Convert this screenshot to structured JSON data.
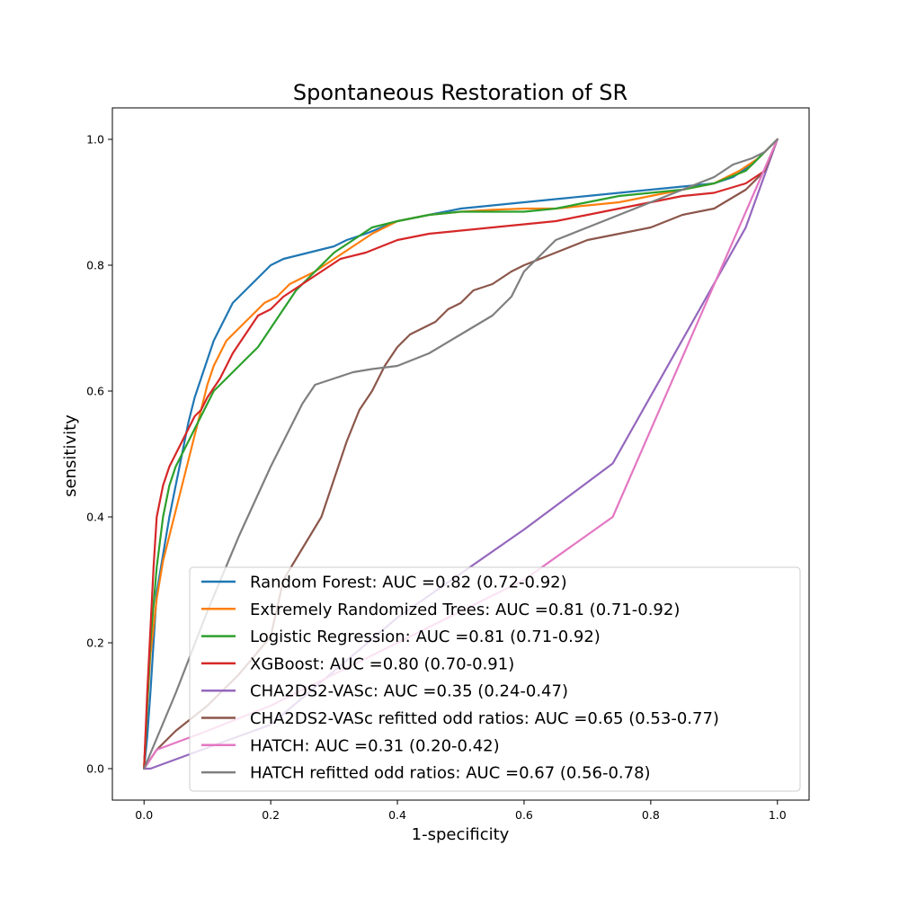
{
  "chart_data": {
    "type": "line",
    "title": "Spontaneous Restoration of SR",
    "xlabel": "1-specificity",
    "ylabel": "sensitivity",
    "xlim": [
      -0.05,
      1.05
    ],
    "ylim": [
      -0.05,
      1.05
    ],
    "xticks": [
      "0.0",
      "0.2",
      "0.4",
      "0.6",
      "0.8",
      "1.0"
    ],
    "yticks": [
      "0.0",
      "0.2",
      "0.4",
      "0.6",
      "0.8",
      "1.0"
    ],
    "grid": false,
    "legend_position": "lower-right",
    "series": [
      {
        "name": "Random Forest: AUC =0.82 (0.72-0.92)",
        "color": "#1f77b4",
        "x": [
          0,
          0.005,
          0.01,
          0.015,
          0.02,
          0.03,
          0.04,
          0.05,
          0.06,
          0.07,
          0.08,
          0.09,
          0.1,
          0.11,
          0.12,
          0.13,
          0.14,
          0.15,
          0.16,
          0.17,
          0.18,
          0.19,
          0.2,
          0.22,
          0.24,
          0.26,
          0.28,
          0.3,
          0.32,
          0.35,
          0.4,
          0.45,
          0.5,
          0.55,
          0.6,
          0.65,
          0.7,
          0.75,
          0.8,
          0.85,
          0.9,
          0.93,
          0.96,
          0.98,
          1.0
        ],
        "y": [
          0,
          0.05,
          0.12,
          0.2,
          0.28,
          0.34,
          0.4,
          0.45,
          0.5,
          0.55,
          0.59,
          0.62,
          0.65,
          0.68,
          0.7,
          0.72,
          0.74,
          0.75,
          0.76,
          0.77,
          0.78,
          0.79,
          0.8,
          0.81,
          0.815,
          0.82,
          0.825,
          0.83,
          0.84,
          0.85,
          0.87,
          0.88,
          0.89,
          0.895,
          0.9,
          0.905,
          0.91,
          0.915,
          0.92,
          0.925,
          0.93,
          0.94,
          0.96,
          0.98,
          1.0
        ]
      },
      {
        "name": "Extremely Randomized Trees: AUC =0.81 (0.71-0.92)",
        "color": "#ff7f0e",
        "x": [
          0,
          0.005,
          0.01,
          0.02,
          0.03,
          0.04,
          0.05,
          0.06,
          0.07,
          0.08,
          0.09,
          0.1,
          0.11,
          0.12,
          0.13,
          0.15,
          0.17,
          0.19,
          0.21,
          0.23,
          0.25,
          0.27,
          0.3,
          0.33,
          0.36,
          0.4,
          0.45,
          0.5,
          0.55,
          0.6,
          0.65,
          0.7,
          0.75,
          0.8,
          0.85,
          0.9,
          0.94,
          0.97,
          1.0
        ],
        "y": [
          0,
          0.1,
          0.18,
          0.27,
          0.33,
          0.37,
          0.41,
          0.45,
          0.49,
          0.53,
          0.57,
          0.61,
          0.64,
          0.66,
          0.68,
          0.7,
          0.72,
          0.74,
          0.75,
          0.77,
          0.78,
          0.79,
          0.81,
          0.83,
          0.85,
          0.87,
          0.88,
          0.885,
          0.888,
          0.89,
          0.89,
          0.895,
          0.9,
          0.91,
          0.92,
          0.93,
          0.95,
          0.97,
          1.0
        ]
      },
      {
        "name": "Logistic Regression: AUC =0.81 (0.71-0.92)",
        "color": "#2ca02c",
        "x": [
          0,
          0.005,
          0.01,
          0.02,
          0.03,
          0.04,
          0.05,
          0.06,
          0.07,
          0.08,
          0.09,
          0.1,
          0.11,
          0.12,
          0.13,
          0.14,
          0.16,
          0.18,
          0.2,
          0.22,
          0.24,
          0.26,
          0.28,
          0.3,
          0.33,
          0.36,
          0.4,
          0.45,
          0.5,
          0.55,
          0.6,
          0.65,
          0.7,
          0.75,
          0.8,
          0.85,
          0.9,
          0.95,
          0.98,
          1.0
        ],
        "y": [
          0,
          0.1,
          0.2,
          0.32,
          0.4,
          0.45,
          0.48,
          0.5,
          0.52,
          0.54,
          0.56,
          0.58,
          0.6,
          0.61,
          0.62,
          0.63,
          0.65,
          0.67,
          0.7,
          0.73,
          0.76,
          0.78,
          0.8,
          0.82,
          0.84,
          0.86,
          0.87,
          0.88,
          0.885,
          0.885,
          0.885,
          0.89,
          0.9,
          0.91,
          0.915,
          0.92,
          0.93,
          0.95,
          0.98,
          1.0
        ]
      },
      {
        "name": "XGBoost: AUC =0.80 (0.70-0.91)",
        "color": "#d62728",
        "x": [
          0,
          0.005,
          0.01,
          0.015,
          0.02,
          0.03,
          0.04,
          0.05,
          0.06,
          0.07,
          0.08,
          0.09,
          0.1,
          0.12,
          0.14,
          0.16,
          0.18,
          0.2,
          0.22,
          0.25,
          0.28,
          0.31,
          0.35,
          0.4,
          0.45,
          0.5,
          0.55,
          0.6,
          0.65,
          0.7,
          0.75,
          0.8,
          0.85,
          0.9,
          0.95,
          0.98,
          1.0
        ],
        "y": [
          0,
          0.12,
          0.22,
          0.32,
          0.4,
          0.45,
          0.48,
          0.5,
          0.52,
          0.54,
          0.56,
          0.57,
          0.59,
          0.62,
          0.66,
          0.69,
          0.72,
          0.73,
          0.75,
          0.77,
          0.79,
          0.81,
          0.82,
          0.84,
          0.85,
          0.855,
          0.86,
          0.865,
          0.87,
          0.88,
          0.89,
          0.9,
          0.91,
          0.915,
          0.93,
          0.95,
          1.0
        ]
      },
      {
        "name": "CHA2DS2-VASc: AUC =0.35 (0.24-0.47)",
        "color": "#9467bd",
        "x": [
          0,
          0.01,
          0.2,
          0.4,
          0.6,
          0.74,
          0.95,
          1.0
        ],
        "y": [
          0,
          0,
          0.07,
          0.24,
          0.38,
          0.485,
          0.86,
          1.0
        ]
      },
      {
        "name": "CHA2DS2-VASc refitted odd ratios: AUC =0.65 (0.53-0.77)",
        "color": "#8c564b",
        "x": [
          0,
          0.02,
          0.05,
          0.1,
          0.15,
          0.2,
          0.22,
          0.25,
          0.28,
          0.3,
          0.32,
          0.34,
          0.36,
          0.38,
          0.4,
          0.42,
          0.44,
          0.46,
          0.48,
          0.5,
          0.52,
          0.55,
          0.58,
          0.6,
          0.65,
          0.7,
          0.75,
          0.8,
          0.85,
          0.9,
          0.95,
          0.98,
          1.0
        ],
        "y": [
          0,
          0.03,
          0.06,
          0.1,
          0.15,
          0.21,
          0.3,
          0.35,
          0.4,
          0.46,
          0.52,
          0.57,
          0.6,
          0.64,
          0.67,
          0.69,
          0.7,
          0.71,
          0.73,
          0.74,
          0.76,
          0.77,
          0.79,
          0.8,
          0.82,
          0.84,
          0.85,
          0.86,
          0.88,
          0.89,
          0.92,
          0.95,
          1.0
        ]
      },
      {
        "name": "HATCH: AUC =0.31 (0.20-0.42)",
        "color": "#e377c2",
        "x": [
          0,
          0.02,
          0.1,
          0.2,
          0.4,
          0.6,
          0.74,
          1.0
        ],
        "y": [
          0,
          0.03,
          0.06,
          0.1,
          0.2,
          0.3,
          0.4,
          1.0
        ]
      },
      {
        "name": "HATCH refitted odd ratios: AUC =0.67 (0.56-0.78)",
        "color": "#7f7f7f",
        "x": [
          0,
          0.05,
          0.1,
          0.15,
          0.2,
          0.25,
          0.27,
          0.3,
          0.33,
          0.36,
          0.4,
          0.45,
          0.5,
          0.55,
          0.58,
          0.6,
          0.65,
          0.7,
          0.75,
          0.8,
          0.85,
          0.9,
          0.93,
          0.96,
          0.98,
          1.0
        ],
        "y": [
          0,
          0.12,
          0.25,
          0.37,
          0.48,
          0.58,
          0.61,
          0.62,
          0.63,
          0.635,
          0.64,
          0.66,
          0.69,
          0.72,
          0.75,
          0.79,
          0.84,
          0.86,
          0.88,
          0.9,
          0.92,
          0.94,
          0.96,
          0.97,
          0.98,
          1.0
        ]
      }
    ]
  }
}
